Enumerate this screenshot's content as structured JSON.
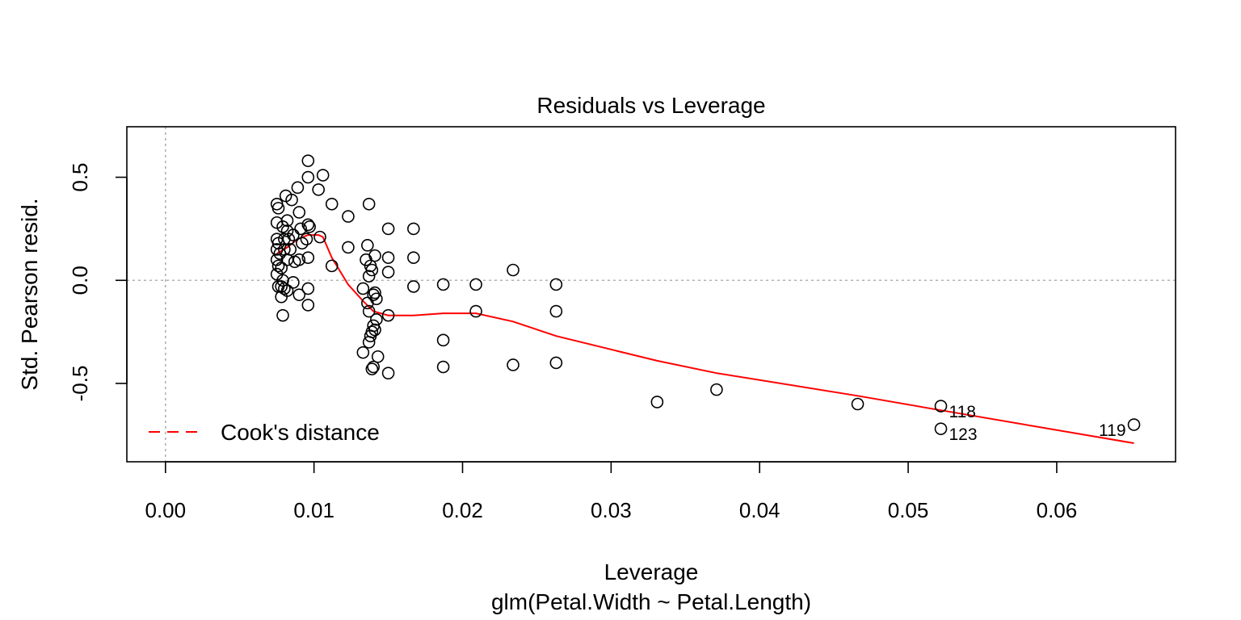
{
  "chart_data": {
    "type": "scatter",
    "title": "Residuals vs Leverage",
    "xlabel": "Leverage",
    "ylabel": "Std. Pearson resid.",
    "subtitle": "glm(Petal.Width ~ Petal.Length)",
    "xlim": [
      -0.0026,
      0.068
    ],
    "ylim": [
      -0.88,
      0.745
    ],
    "x_ticks": [
      {
        "value": 0.0,
        "label": "0.00"
      },
      {
        "value": 0.01,
        "label": "0.01"
      },
      {
        "value": 0.02,
        "label": "0.02"
      },
      {
        "value": 0.03,
        "label": "0.03"
      },
      {
        "value": 0.04,
        "label": "0.04"
      },
      {
        "value": 0.05,
        "label": "0.05"
      },
      {
        "value": 0.06,
        "label": "0.06"
      }
    ],
    "y_ticks": [
      {
        "value": -0.5,
        "label": "-0.5"
      },
      {
        "value": 0.0,
        "label": "0.0"
      },
      {
        "value": 0.5,
        "label": "0.5"
      }
    ],
    "reference_lines": {
      "h": 0,
      "v": 0,
      "style": "dotted",
      "color": "#b0b0b0"
    },
    "grid": false,
    "colors": {
      "points": "#000000",
      "smoother": "#ff0000",
      "cooks": "#ff0000"
    },
    "legend": {
      "position": "bottom-left",
      "entries": [
        {
          "label": "Cook's distance",
          "line": "dashed",
          "color": "#ff0000"
        }
      ]
    },
    "points": [
      {
        "x": 0.0075,
        "y": 0.37
      },
      {
        "x": 0.0076,
        "y": 0.35
      },
      {
        "x": 0.0075,
        "y": 0.28
      },
      {
        "x": 0.0075,
        "y": 0.2
      },
      {
        "x": 0.0076,
        "y": 0.18
      },
      {
        "x": 0.0075,
        "y": 0.15
      },
      {
        "x": 0.0077,
        "y": 0.13
      },
      {
        "x": 0.0075,
        "y": 0.1
      },
      {
        "x": 0.0076,
        "y": 0.07
      },
      {
        "x": 0.0078,
        "y": 0.06
      },
      {
        "x": 0.0075,
        "y": 0.03
      },
      {
        "x": 0.0076,
        "y": -0.03
      },
      {
        "x": 0.0078,
        "y": -0.03
      },
      {
        "x": 0.0078,
        "y": -0.08
      },
      {
        "x": 0.0079,
        "y": -0.17
      },
      {
        "x": 0.0079,
        "y": 0.0
      },
      {
        "x": 0.008,
        "y": -0.04
      },
      {
        "x": 0.0082,
        "y": -0.05
      },
      {
        "x": 0.0081,
        "y": 0.41
      },
      {
        "x": 0.0085,
        "y": 0.39
      },
      {
        "x": 0.0079,
        "y": 0.26
      },
      {
        "x": 0.0082,
        "y": 0.29
      },
      {
        "x": 0.0082,
        "y": 0.24
      },
      {
        "x": 0.0086,
        "y": 0.22
      },
      {
        "x": 0.008,
        "y": 0.2
      },
      {
        "x": 0.0083,
        "y": 0.2
      },
      {
        "x": 0.008,
        "y": 0.15
      },
      {
        "x": 0.0084,
        "y": 0.15
      },
      {
        "x": 0.0082,
        "y": 0.1
      },
      {
        "x": 0.0087,
        "y": 0.09
      },
      {
        "x": 0.0086,
        "y": -0.01
      },
      {
        "x": 0.0089,
        "y": 0.45
      },
      {
        "x": 0.009,
        "y": 0.33
      },
      {
        "x": 0.0091,
        "y": 0.25
      },
      {
        "x": 0.0092,
        "y": 0.18
      },
      {
        "x": 0.009,
        "y": 0.1
      },
      {
        "x": 0.009,
        "y": -0.07
      },
      {
        "x": 0.0096,
        "y": 0.58
      },
      {
        "x": 0.0096,
        "y": 0.5
      },
      {
        "x": 0.0096,
        "y": 0.27
      },
      {
        "x": 0.0097,
        "y": 0.26
      },
      {
        "x": 0.0095,
        "y": 0.2
      },
      {
        "x": 0.0096,
        "y": 0.11
      },
      {
        "x": 0.0096,
        "y": -0.04
      },
      {
        "x": 0.0096,
        "y": -0.12
      },
      {
        "x": 0.0103,
        "y": 0.44
      },
      {
        "x": 0.0106,
        "y": 0.51
      },
      {
        "x": 0.0104,
        "y": 0.21
      },
      {
        "x": 0.0112,
        "y": 0.37
      },
      {
        "x": 0.0112,
        "y": 0.07
      },
      {
        "x": 0.0123,
        "y": 0.31
      },
      {
        "x": 0.0123,
        "y": 0.16
      },
      {
        "x": 0.0133,
        "y": -0.04
      },
      {
        "x": 0.0133,
        "y": -0.35
      },
      {
        "x": 0.0136,
        "y": 0.17
      },
      {
        "x": 0.0135,
        "y": 0.1
      },
      {
        "x": 0.0138,
        "y": 0.07
      },
      {
        "x": 0.0139,
        "y": 0.05
      },
      {
        "x": 0.0137,
        "y": 0.02
      },
      {
        "x": 0.0136,
        "y": -0.11
      },
      {
        "x": 0.0137,
        "y": -0.15
      },
      {
        "x": 0.0137,
        "y": -0.3
      },
      {
        "x": 0.0138,
        "y": -0.27
      },
      {
        "x": 0.0139,
        "y": -0.25
      },
      {
        "x": 0.0139,
        "y": -0.43
      },
      {
        "x": 0.0137,
        "y": 0.37
      },
      {
        "x": 0.014,
        "y": -0.07
      },
      {
        "x": 0.0141,
        "y": -0.06
      },
      {
        "x": 0.0142,
        "y": -0.09
      },
      {
        "x": 0.014,
        "y": -0.22
      },
      {
        "x": 0.0142,
        "y": -0.19
      },
      {
        "x": 0.0141,
        "y": -0.24
      },
      {
        "x": 0.014,
        "y": -0.42
      },
      {
        "x": 0.0143,
        "y": -0.37
      },
      {
        "x": 0.0141,
        "y": 0.12
      },
      {
        "x": 0.015,
        "y": 0.25
      },
      {
        "x": 0.015,
        "y": 0.11
      },
      {
        "x": 0.015,
        "y": 0.04
      },
      {
        "x": 0.015,
        "y": -0.17
      },
      {
        "x": 0.015,
        "y": -0.45
      },
      {
        "x": 0.0167,
        "y": 0.25
      },
      {
        "x": 0.0167,
        "y": 0.11
      },
      {
        "x": 0.0167,
        "y": -0.03
      },
      {
        "x": 0.0187,
        "y": -0.02
      },
      {
        "x": 0.0187,
        "y": -0.29
      },
      {
        "x": 0.0187,
        "y": -0.42
      },
      {
        "x": 0.0209,
        "y": -0.02
      },
      {
        "x": 0.0209,
        "y": -0.15
      },
      {
        "x": 0.0234,
        "y": 0.05
      },
      {
        "x": 0.0234,
        "y": -0.41
      },
      {
        "x": 0.0263,
        "y": -0.02
      },
      {
        "x": 0.0263,
        "y": -0.15
      },
      {
        "x": 0.0263,
        "y": -0.4
      },
      {
        "x": 0.0331,
        "y": -0.59
      },
      {
        "x": 0.0371,
        "y": -0.53
      },
      {
        "x": 0.0466,
        "y": -0.6
      },
      {
        "x": 0.0522,
        "y": -0.61,
        "label": "118"
      },
      {
        "x": 0.0522,
        "y": -0.72,
        "label": "123"
      },
      {
        "x": 0.0652,
        "y": -0.7,
        "label": "119"
      }
    ],
    "smoother": {
      "x": [
        0.0075,
        0.0082,
        0.0089,
        0.0096,
        0.0103,
        0.0106,
        0.0112,
        0.0123,
        0.0133,
        0.014,
        0.015,
        0.0167,
        0.0187,
        0.0209,
        0.0234,
        0.0263,
        0.0331,
        0.0371,
        0.0466,
        0.0522,
        0.0652
      ],
      "y": [
        0.13,
        0.16,
        0.2,
        0.22,
        0.22,
        0.21,
        0.11,
        -0.02,
        -0.1,
        -0.15,
        -0.17,
        -0.17,
        -0.16,
        -0.16,
        -0.2,
        -0.27,
        -0.39,
        -0.45,
        -0.56,
        -0.63,
        -0.79
      ]
    }
  }
}
